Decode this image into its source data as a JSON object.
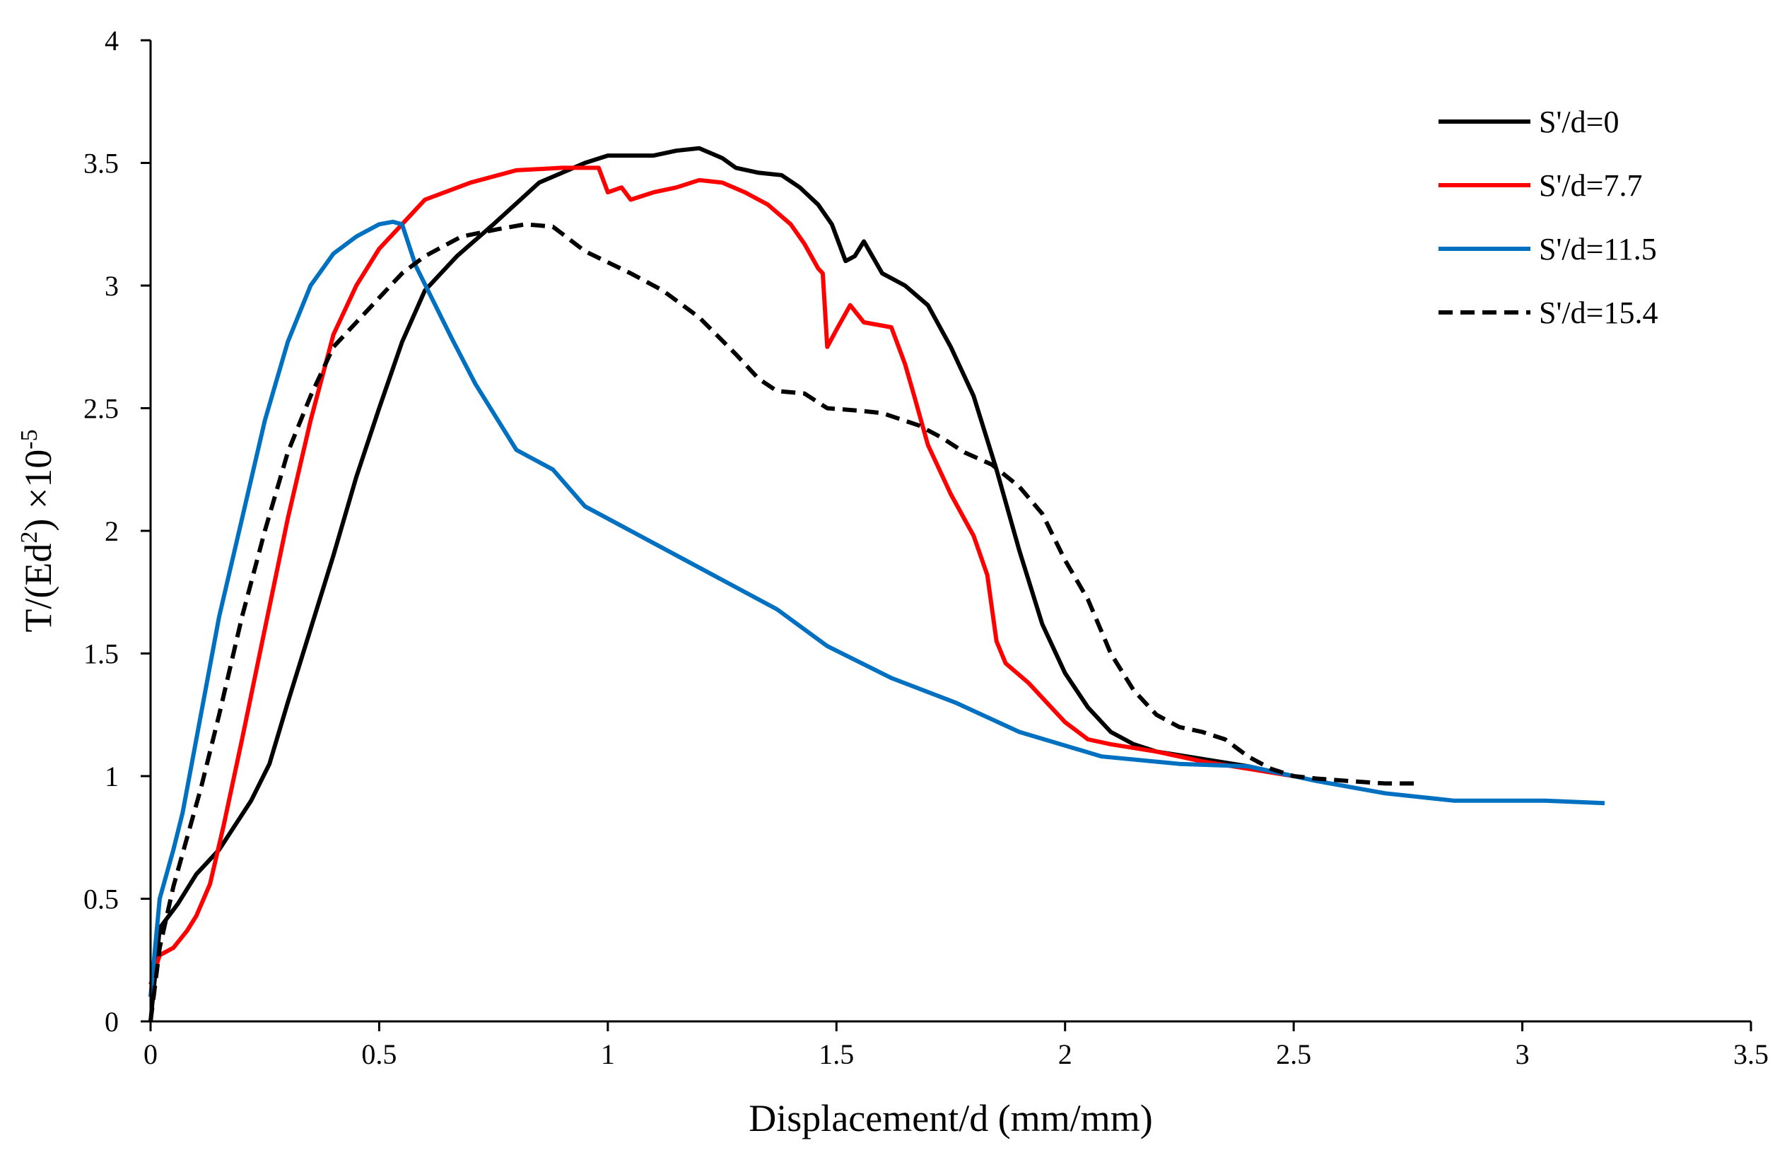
{
  "chart_data": {
    "type": "line",
    "title": "",
    "xlabel": "Displacement/d (mm/mm)",
    "ylabel": {
      "prefix": "T/(Ed",
      "sup1": "2",
      "mid": ")  ×10",
      "sup2": "-5"
    },
    "xlim": [
      0,
      3.5
    ],
    "ylim": [
      0,
      4
    ],
    "xticks": [
      0,
      0.5,
      1,
      1.5,
      2,
      2.5,
      3,
      3.5
    ],
    "xtick_labels": [
      "0",
      "0.5",
      "1",
      "1.5",
      "2",
      "2.5",
      "3",
      "3.5"
    ],
    "yticks": [
      0,
      0.5,
      1,
      1.5,
      2,
      2.5,
      3,
      3.5,
      4
    ],
    "ytick_labels": [
      "0",
      "0.5",
      "1",
      "1.5",
      "2",
      "2.5",
      "3",
      "3.5",
      "4"
    ],
    "grid": false,
    "legend_position": "top-right",
    "series": [
      {
        "name": "S'/d=0",
        "color": "#000000",
        "dash": "solid",
        "points": [
          [
            0,
            0
          ],
          [
            0.02,
            0.38
          ],
          [
            0.06,
            0.48
          ],
          [
            0.1,
            0.6
          ],
          [
            0.15,
            0.7
          ],
          [
            0.22,
            0.9
          ],
          [
            0.26,
            1.05
          ],
          [
            0.3,
            1.3
          ],
          [
            0.35,
            1.6
          ],
          [
            0.4,
            1.9
          ],
          [
            0.45,
            2.22
          ],
          [
            0.5,
            2.5
          ],
          [
            0.55,
            2.77
          ],
          [
            0.6,
            2.98
          ],
          [
            0.67,
            3.12
          ],
          [
            0.75,
            3.25
          ],
          [
            0.85,
            3.42
          ],
          [
            0.95,
            3.5
          ],
          [
            1.0,
            3.53
          ],
          [
            1.05,
            3.53
          ],
          [
            1.1,
            3.53
          ],
          [
            1.15,
            3.55
          ],
          [
            1.2,
            3.56
          ],
          [
            1.25,
            3.52
          ],
          [
            1.28,
            3.48
          ],
          [
            1.33,
            3.46
          ],
          [
            1.38,
            3.45
          ],
          [
            1.42,
            3.4
          ],
          [
            1.46,
            3.33
          ],
          [
            1.49,
            3.25
          ],
          [
            1.52,
            3.1
          ],
          [
            1.54,
            3.12
          ],
          [
            1.56,
            3.18
          ],
          [
            1.6,
            3.05
          ],
          [
            1.65,
            3.0
          ],
          [
            1.7,
            2.92
          ],
          [
            1.75,
            2.75
          ],
          [
            1.8,
            2.55
          ],
          [
            1.85,
            2.25
          ],
          [
            1.9,
            1.92
          ],
          [
            1.95,
            1.62
          ],
          [
            2.0,
            1.42
          ],
          [
            2.05,
            1.28
          ],
          [
            2.1,
            1.18
          ],
          [
            2.15,
            1.13
          ],
          [
            2.2,
            1.1
          ],
          [
            2.3,
            1.07
          ],
          [
            2.4,
            1.04
          ],
          [
            2.5,
            1.0
          ]
        ]
      },
      {
        "name": "S'/d=7.7",
        "color": "#ff0000",
        "dash": "solid",
        "points": [
          [
            0,
            0.15
          ],
          [
            0.02,
            0.27
          ],
          [
            0.05,
            0.3
          ],
          [
            0.08,
            0.37
          ],
          [
            0.1,
            0.43
          ],
          [
            0.13,
            0.56
          ],
          [
            0.16,
            0.8
          ],
          [
            0.2,
            1.15
          ],
          [
            0.25,
            1.6
          ],
          [
            0.3,
            2.05
          ],
          [
            0.35,
            2.45
          ],
          [
            0.4,
            2.8
          ],
          [
            0.45,
            3.0
          ],
          [
            0.5,
            3.15
          ],
          [
            0.55,
            3.25
          ],
          [
            0.6,
            3.35
          ],
          [
            0.7,
            3.42
          ],
          [
            0.8,
            3.47
          ],
          [
            0.9,
            3.48
          ],
          [
            0.98,
            3.48
          ],
          [
            1.0,
            3.38
          ],
          [
            1.03,
            3.4
          ],
          [
            1.05,
            3.35
          ],
          [
            1.1,
            3.38
          ],
          [
            1.15,
            3.4
          ],
          [
            1.2,
            3.43
          ],
          [
            1.25,
            3.42
          ],
          [
            1.3,
            3.38
          ],
          [
            1.35,
            3.33
          ],
          [
            1.4,
            3.25
          ],
          [
            1.43,
            3.17
          ],
          [
            1.46,
            3.07
          ],
          [
            1.47,
            3.05
          ],
          [
            1.48,
            2.75
          ],
          [
            1.5,
            2.82
          ],
          [
            1.53,
            2.92
          ],
          [
            1.56,
            2.85
          ],
          [
            1.62,
            2.83
          ],
          [
            1.65,
            2.68
          ],
          [
            1.67,
            2.55
          ],
          [
            1.7,
            2.35
          ],
          [
            1.75,
            2.15
          ],
          [
            1.8,
            1.98
          ],
          [
            1.83,
            1.82
          ],
          [
            1.85,
            1.55
          ],
          [
            1.87,
            1.46
          ],
          [
            1.92,
            1.38
          ],
          [
            1.96,
            1.3
          ],
          [
            2.0,
            1.22
          ],
          [
            2.05,
            1.15
          ],
          [
            2.1,
            1.13
          ],
          [
            2.2,
            1.1
          ],
          [
            2.3,
            1.06
          ],
          [
            2.4,
            1.03
          ],
          [
            2.5,
            1.0
          ]
        ]
      },
      {
        "name": "S'/d=11.5",
        "color": "#0070c0",
        "dash": "solid",
        "points": [
          [
            0,
            0.1
          ],
          [
            0.02,
            0.5
          ],
          [
            0.05,
            0.7
          ],
          [
            0.07,
            0.85
          ],
          [
            0.1,
            1.15
          ],
          [
            0.15,
            1.65
          ],
          [
            0.2,
            2.05
          ],
          [
            0.25,
            2.45
          ],
          [
            0.3,
            2.77
          ],
          [
            0.35,
            3.0
          ],
          [
            0.4,
            3.13
          ],
          [
            0.45,
            3.2
          ],
          [
            0.5,
            3.25
          ],
          [
            0.53,
            3.26
          ],
          [
            0.55,
            3.25
          ],
          [
            0.58,
            3.08
          ],
          [
            0.62,
            2.93
          ],
          [
            0.66,
            2.78
          ],
          [
            0.71,
            2.6
          ],
          [
            0.76,
            2.45
          ],
          [
            0.8,
            2.33
          ],
          [
            0.88,
            2.25
          ],
          [
            0.95,
            2.1
          ],
          [
            1.05,
            2.0
          ],
          [
            1.15,
            1.9
          ],
          [
            1.25,
            1.8
          ],
          [
            1.37,
            1.68
          ],
          [
            1.48,
            1.53
          ],
          [
            1.62,
            1.4
          ],
          [
            1.76,
            1.3
          ],
          [
            1.9,
            1.18
          ],
          [
            2.08,
            1.08
          ],
          [
            2.25,
            1.05
          ],
          [
            2.4,
            1.04
          ],
          [
            2.55,
            0.98
          ],
          [
            2.7,
            0.93
          ],
          [
            2.85,
            0.9
          ],
          [
            3.05,
            0.9
          ],
          [
            3.18,
            0.89
          ]
        ]
      },
      {
        "name": "S'/d=15.4",
        "color": "#000000",
        "dash": "dashed",
        "points": [
          [
            0,
            0
          ],
          [
            0.02,
            0.3
          ],
          [
            0.05,
            0.55
          ],
          [
            0.08,
            0.75
          ],
          [
            0.11,
            0.95
          ],
          [
            0.15,
            1.25
          ],
          [
            0.2,
            1.65
          ],
          [
            0.25,
            2.0
          ],
          [
            0.3,
            2.32
          ],
          [
            0.35,
            2.55
          ],
          [
            0.4,
            2.75
          ],
          [
            0.45,
            2.85
          ],
          [
            0.5,
            2.95
          ],
          [
            0.55,
            3.05
          ],
          [
            0.6,
            3.12
          ],
          [
            0.68,
            3.2
          ],
          [
            0.76,
            3.23
          ],
          [
            0.82,
            3.25
          ],
          [
            0.88,
            3.24
          ],
          [
            0.95,
            3.14
          ],
          [
            1.05,
            3.05
          ],
          [
            1.12,
            2.98
          ],
          [
            1.2,
            2.87
          ],
          [
            1.28,
            2.72
          ],
          [
            1.33,
            2.62
          ],
          [
            1.37,
            2.57
          ],
          [
            1.43,
            2.56
          ],
          [
            1.48,
            2.5
          ],
          [
            1.55,
            2.49
          ],
          [
            1.6,
            2.48
          ],
          [
            1.68,
            2.43
          ],
          [
            1.73,
            2.38
          ],
          [
            1.78,
            2.32
          ],
          [
            1.84,
            2.27
          ],
          [
            1.9,
            2.18
          ],
          [
            1.95,
            2.07
          ],
          [
            2.0,
            1.88
          ],
          [
            2.05,
            1.72
          ],
          [
            2.1,
            1.5
          ],
          [
            2.15,
            1.35
          ],
          [
            2.2,
            1.25
          ],
          [
            2.25,
            1.2
          ],
          [
            2.3,
            1.18
          ],
          [
            2.35,
            1.15
          ],
          [
            2.4,
            1.08
          ],
          [
            2.45,
            1.03
          ],
          [
            2.5,
            1.0
          ],
          [
            2.55,
            0.99
          ],
          [
            2.62,
            0.98
          ],
          [
            2.7,
            0.97
          ],
          [
            2.77,
            0.97
          ]
        ]
      }
    ]
  }
}
